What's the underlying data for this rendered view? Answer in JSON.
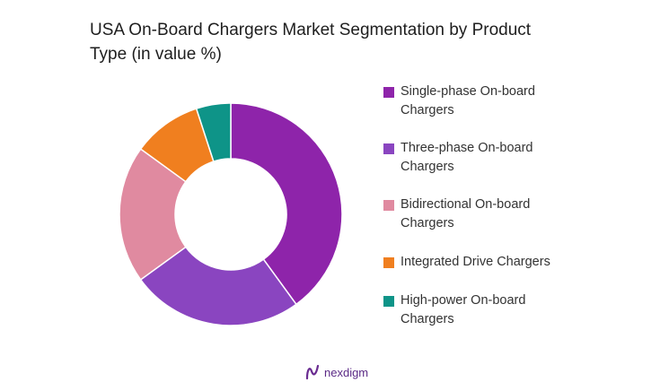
{
  "title": "USA On-Board Chargers Market Segmentation by Product Type (in value %)",
  "brand": {
    "name": "nexdigm",
    "icon": "nexdigm-logo-icon"
  },
  "chart_data": {
    "type": "pie",
    "donut": true,
    "title": "USA On-Board Chargers Market Segmentation by Product Type (in value %)",
    "legend_position": "right",
    "categories": [
      "Single-phase On-board Chargers",
      "Three-phase On-board Chargers",
      "Bidirectional On-board Chargers",
      "Integrated Drive Chargers",
      "High-power On-board Chargers"
    ],
    "values": [
      40,
      25,
      20,
      10,
      5
    ],
    "colors": [
      "#8e24aa",
      "#8a45c0",
      "#e08aa0",
      "#f07f1f",
      "#0e9488"
    ]
  }
}
